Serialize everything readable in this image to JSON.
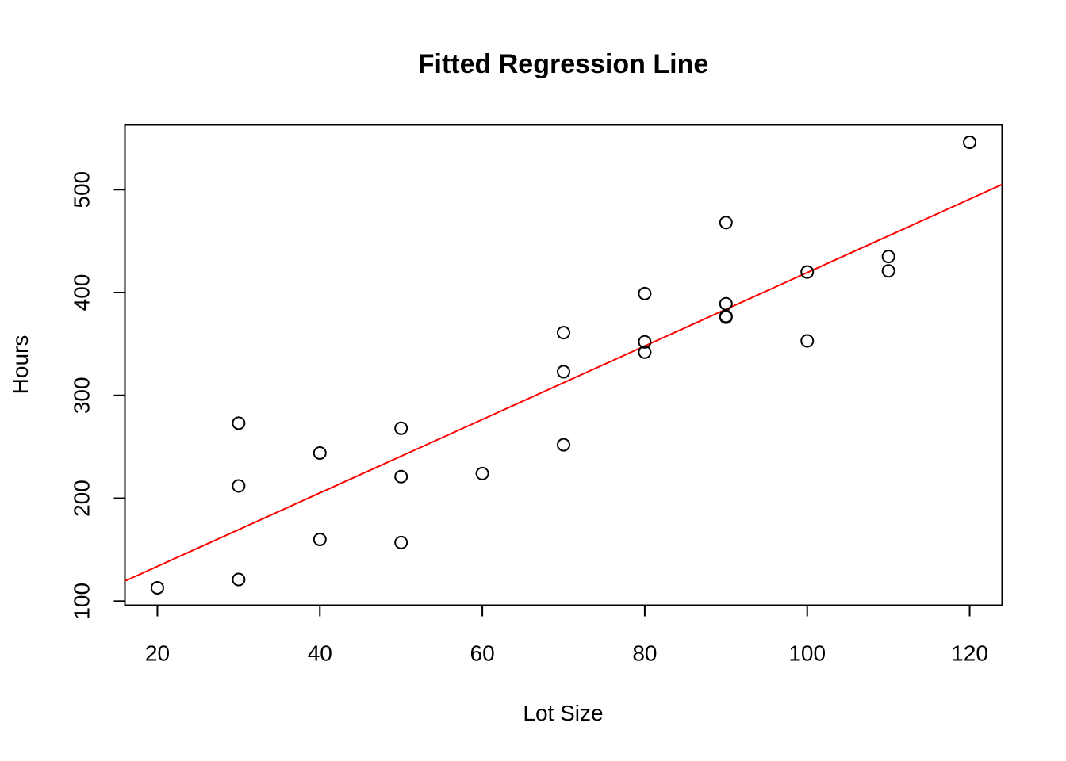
{
  "chart_data": {
    "type": "scatter",
    "title": "Fitted Regression Line",
    "xlabel": "Lot Size",
    "ylabel": "Hours",
    "xlim": [
      16,
      124
    ],
    "ylim": [
      96,
      563
    ],
    "x_ticks": [
      20,
      40,
      60,
      80,
      100,
      120
    ],
    "y_ticks": [
      100,
      200,
      300,
      400,
      500
    ],
    "grid": false,
    "points": [
      {
        "x": 80,
        "y": 399
      },
      {
        "x": 30,
        "y": 121
      },
      {
        "x": 50,
        "y": 221
      },
      {
        "x": 90,
        "y": 376
      },
      {
        "x": 70,
        "y": 361
      },
      {
        "x": 60,
        "y": 224
      },
      {
        "x": 120,
        "y": 546
      },
      {
        "x": 80,
        "y": 352
      },
      {
        "x": 100,
        "y": 353
      },
      {
        "x": 50,
        "y": 157
      },
      {
        "x": 40,
        "y": 160
      },
      {
        "x": 70,
        "y": 252
      },
      {
        "x": 90,
        "y": 389
      },
      {
        "x": 20,
        "y": 113
      },
      {
        "x": 110,
        "y": 435
      },
      {
        "x": 100,
        "y": 420
      },
      {
        "x": 30,
        "y": 212
      },
      {
        "x": 50,
        "y": 268
      },
      {
        "x": 90,
        "y": 377
      },
      {
        "x": 110,
        "y": 421
      },
      {
        "x": 30,
        "y": 273
      },
      {
        "x": 90,
        "y": 468
      },
      {
        "x": 40,
        "y": 244
      },
      {
        "x": 80,
        "y": 342
      },
      {
        "x": 70,
        "y": 323
      }
    ],
    "regression_line": {
      "intercept": 62.37,
      "slope": 3.5702,
      "color": "#ff0000"
    },
    "point_color": "#000000"
  }
}
